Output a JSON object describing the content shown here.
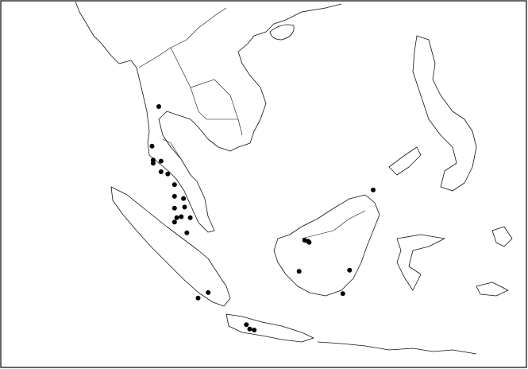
{
  "map": {
    "region": "Southeast Asia",
    "colors": {
      "land_outline": "#111111",
      "marker": "#000000",
      "background": "#ffffff"
    },
    "occurrence_points": [
      {
        "lon": 99.1,
        "lat": 13.6
      },
      {
        "lon": 98.5,
        "lat": 9.9
      },
      {
        "lon": 98.6,
        "lat": 8.6
      },
      {
        "lon": 98.6,
        "lat": 8.3
      },
      {
        "lon": 99.3,
        "lat": 8.5
      },
      {
        "lon": 99.3,
        "lat": 7.5
      },
      {
        "lon": 99.9,
        "lat": 7.3
      },
      {
        "lon": 100.5,
        "lat": 6.3
      },
      {
        "lon": 100.5,
        "lat": 5.2
      },
      {
        "lon": 101.3,
        "lat": 5.0
      },
      {
        "lon": 101.4,
        "lat": 4.2
      },
      {
        "lon": 100.5,
        "lat": 4.1
      },
      {
        "lon": 100.7,
        "lat": 3.2
      },
      {
        "lon": 101.1,
        "lat": 3.3
      },
      {
        "lon": 101.9,
        "lat": 3.2
      },
      {
        "lon": 100.5,
        "lat": 2.8
      },
      {
        "lon": 101.6,
        "lat": 1.8
      },
      {
        "lon": 112.1,
        "lat": 1.1
      },
      {
        "lon": 112.4,
        "lat": 1.0
      },
      {
        "lon": 112.5,
        "lat": 0.9
      },
      {
        "lon": 111.6,
        "lat": -1.8
      },
      {
        "lon": 116.1,
        "lat": -1.7
      },
      {
        "lon": 115.5,
        "lat": -3.9
      },
      {
        "lon": 103.5,
        "lat": -3.8
      },
      {
        "lon": 102.6,
        "lat": -4.3
      },
      {
        "lon": 106.9,
        "lat": -6.8
      },
      {
        "lon": 107.2,
        "lat": -7.2
      },
      {
        "lon": 107.6,
        "lat": -7.3
      },
      {
        "lon": 118.2,
        "lat": 5.8
      }
    ]
  }
}
